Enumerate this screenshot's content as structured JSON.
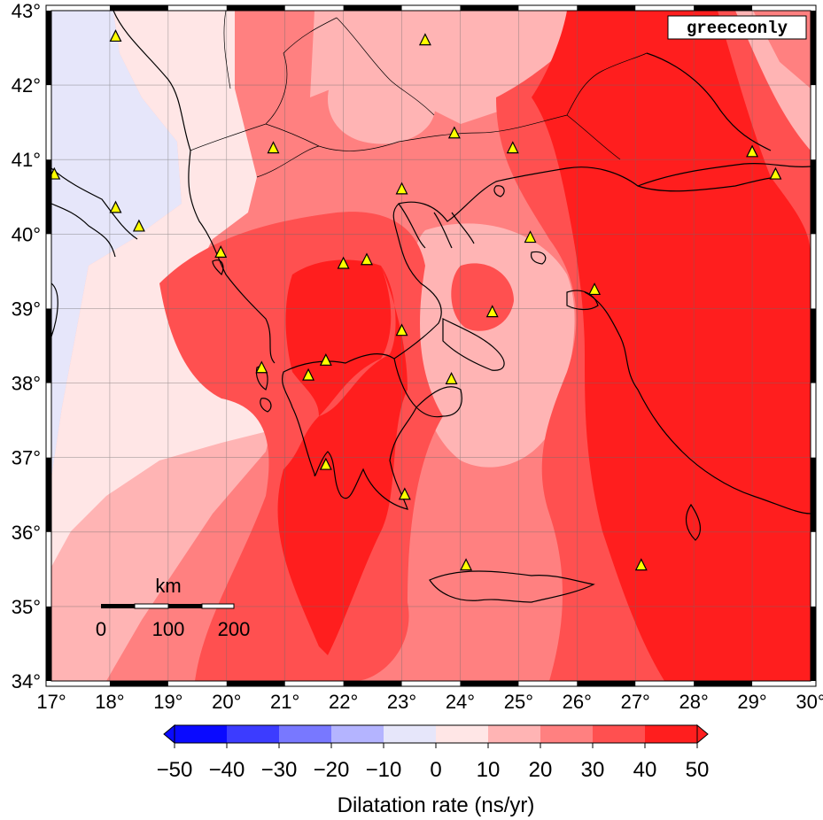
{
  "map": {
    "tag": "greeceonly",
    "lon_labels": [
      "17°",
      "18°",
      "19°",
      "20°",
      "21°",
      "22°",
      "23°",
      "24°",
      "25°",
      "26°",
      "27°",
      "28°",
      "29°",
      "30°"
    ],
    "lat_labels": [
      "34°",
      "35°",
      "36°",
      "37°",
      "38°",
      "39°",
      "40°",
      "41°",
      "42°",
      "43°"
    ],
    "lon_range": [
      17,
      30
    ],
    "lat_range": [
      34,
      43
    ],
    "stations": [
      {
        "lon": 18.1,
        "lat": 42.65
      },
      {
        "lon": 17.05,
        "lat": 40.8
      },
      {
        "lon": 18.1,
        "lat": 40.35
      },
      {
        "lon": 18.5,
        "lat": 40.1
      },
      {
        "lon": 19.9,
        "lat": 39.75
      },
      {
        "lon": 20.8,
        "lat": 41.15
      },
      {
        "lon": 23.4,
        "lat": 42.6
      },
      {
        "lon": 23.9,
        "lat": 41.35
      },
      {
        "lon": 24.9,
        "lat": 41.15
      },
      {
        "lon": 23.0,
        "lat": 40.6
      },
      {
        "lon": 25.2,
        "lat": 39.95
      },
      {
        "lon": 29.0,
        "lat": 41.1
      },
      {
        "lon": 29.4,
        "lat": 40.8
      },
      {
        "lon": 22.0,
        "lat": 39.6
      },
      {
        "lon": 22.4,
        "lat": 39.65
      },
      {
        "lon": 26.3,
        "lat": 39.25
      },
      {
        "lon": 24.55,
        "lat": 38.95
      },
      {
        "lon": 23.0,
        "lat": 38.7
      },
      {
        "lon": 21.7,
        "lat": 38.3
      },
      {
        "lon": 21.4,
        "lat": 38.1
      },
      {
        "lon": 20.6,
        "lat": 38.2
      },
      {
        "lon": 23.85,
        "lat": 38.05
      },
      {
        "lon": 21.7,
        "lat": 36.9
      },
      {
        "lon": 23.05,
        "lat": 36.5
      },
      {
        "lon": 24.1,
        "lat": 35.55
      },
      {
        "lon": 27.1,
        "lat": 35.55
      }
    ],
    "scalebar": {
      "title": "km",
      "ticks": [
        "0",
        "100",
        "200"
      ]
    }
  },
  "colorbar": {
    "labels": [
      "−50",
      "−40",
      "−30",
      "−20",
      "−10",
      "0",
      "10",
      "20",
      "30",
      "40",
      "50"
    ],
    "colors": [
      "#0a0aff",
      "#3c3cff",
      "#7878ff",
      "#b4b4ff",
      "#e6e6fa",
      "#ffe6e6",
      "#ffb4b4",
      "#ff8080",
      "#ff5050",
      "#ff1e1e"
    ],
    "title": "Dilatation rate (ns/yr)"
  },
  "palette": {
    "c0_10": "#ffe6e6",
    "c10_20": "#ffb4b4",
    "c20_30": "#ff8080",
    "c30_40": "#ff5050",
    "c40_50": "#ff1e1e",
    "neg": "#e6e6fa"
  }
}
